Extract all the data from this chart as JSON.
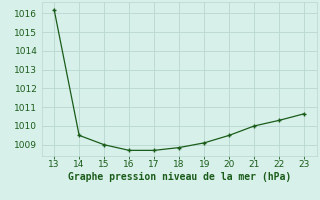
{
  "x": [
    13,
    14,
    15,
    16,
    17,
    18,
    19,
    20,
    21,
    22,
    23
  ],
  "y": [
    1016.2,
    1009.5,
    1009.0,
    1008.7,
    1008.7,
    1008.85,
    1009.1,
    1009.5,
    1010.0,
    1010.3,
    1010.65
  ],
  "xlim": [
    12.5,
    23.5
  ],
  "ylim": [
    1008.4,
    1016.6
  ],
  "yticks": [
    1009,
    1010,
    1011,
    1012,
    1013,
    1014,
    1015,
    1016
  ],
  "xticks": [
    13,
    14,
    15,
    16,
    17,
    18,
    19,
    20,
    21,
    22,
    23
  ],
  "xlabel": "Graphe pression niveau de la mer (hPa)",
  "line_color": "#1a5c1a",
  "marker": "+",
  "bg_color": "#d8f0ea",
  "grid_color": "#b8d8d0",
  "xlabel_color": "#1a5c1a",
  "xlabel_fontsize": 7.0,
  "tick_fontsize": 6.5
}
